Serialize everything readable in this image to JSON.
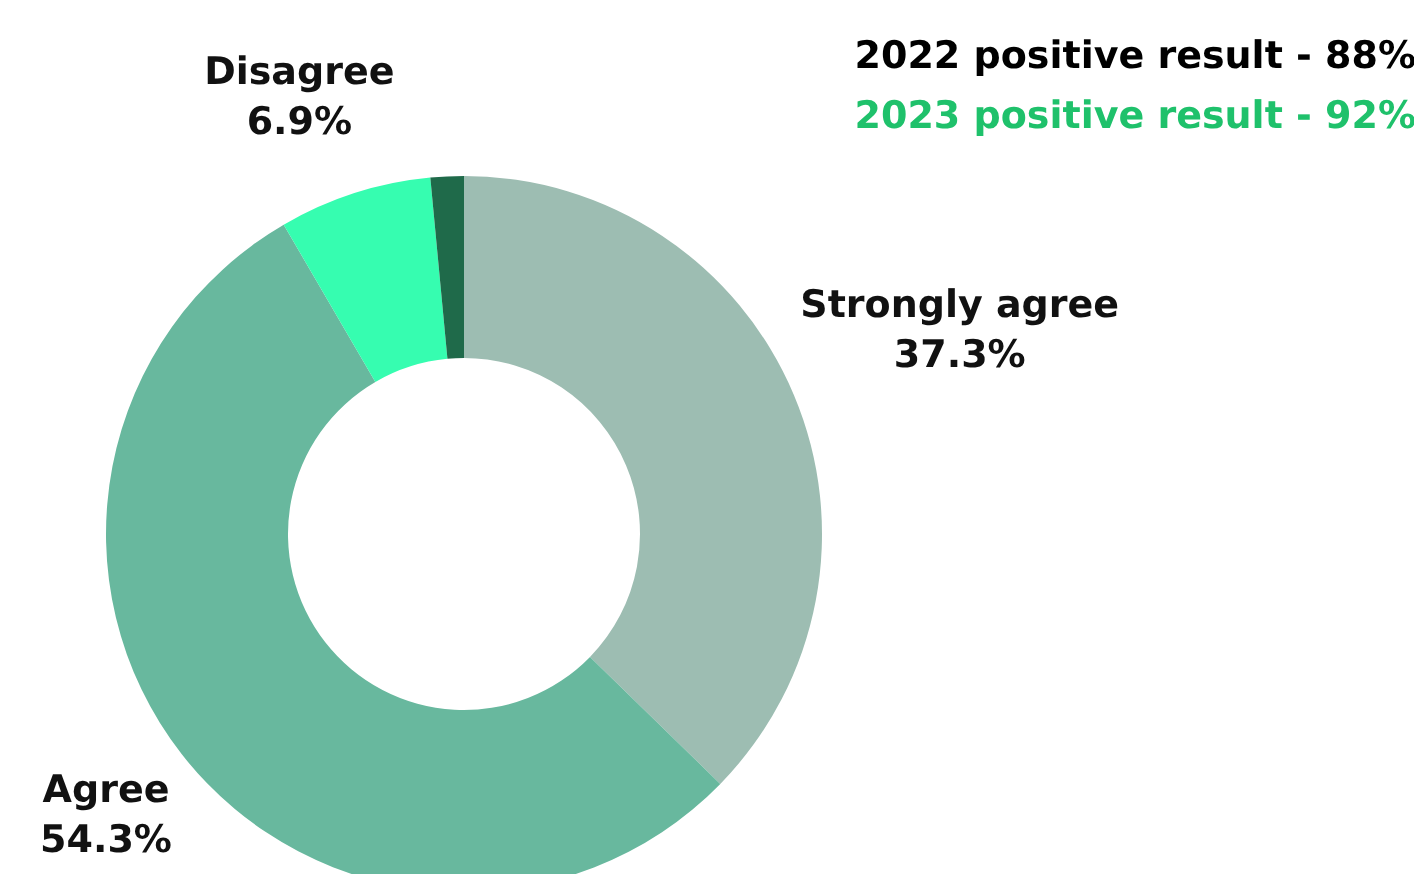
{
  "chart_data": {
    "type": "donut",
    "categories": [
      "Strongly agree",
      "Agree",
      "Disagree",
      null
    ],
    "values": [
      37.3,
      54.3,
      6.9,
      1.5
    ],
    "colors": [
      "#9dbdb2",
      "#68b89e",
      "#36fdb0",
      "#1f6a4a"
    ],
    "value_labels": [
      "37.3%",
      "54.3%",
      "6.9%",
      null
    ],
    "annotations": [
      "2022 positive result - 88%",
      "2023 positive result - 92%"
    ]
  }
}
